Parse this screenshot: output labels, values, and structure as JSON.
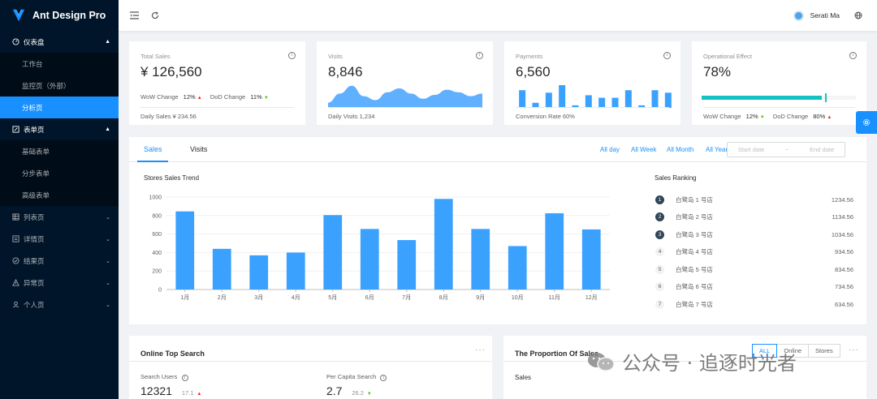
{
  "app": {
    "title": "Ant Design Pro"
  },
  "sidebar": {
    "groups": [
      {
        "label": "仪表盘",
        "icon": "dashboard-icon",
        "open": true,
        "items": [
          "工作台",
          "监控页（外部）",
          "分析页"
        ],
        "active": "分析页"
      },
      {
        "label": "表单页",
        "icon": "form-icon",
        "open": true,
        "items": [
          "基础表单",
          "分步表单",
          "高级表单"
        ]
      },
      {
        "label": "列表页",
        "icon": "table-icon"
      },
      {
        "label": "详情页",
        "icon": "profile-icon"
      },
      {
        "label": "结果页",
        "icon": "check-circle-icon"
      },
      {
        "label": "异常页",
        "icon": "warning-icon"
      },
      {
        "label": "个人页",
        "icon": "user-icon"
      }
    ]
  },
  "header": {
    "user_name": "Serati Ma"
  },
  "stats": {
    "total_sales": {
      "title": "Total Sales",
      "value": "¥ 126,560",
      "wow_label": "WoW Change",
      "wow_value": "12%",
      "dod_label": "DoD Change",
      "dod_value": "11%",
      "footer": "Daily Sales ¥ 234.56"
    },
    "visits": {
      "title": "Visits",
      "value": "8,846",
      "footer": "Daily Visits 1,234"
    },
    "payments": {
      "title": "Payments",
      "value": "6,560",
      "footer": "Conversion Rate 60%"
    },
    "operational": {
      "title": "Operational Effect",
      "value": "78%",
      "progress": 0.78,
      "wow_label": "WoW Change",
      "wow_value": "12%",
      "dod_label": "DoD Change",
      "dod_value": "80%"
    }
  },
  "sales_panel": {
    "tabs": [
      "Sales",
      "Visits"
    ],
    "active_tab": "Sales",
    "ranges": [
      "All day",
      "All Week",
      "All Month",
      "All Year"
    ],
    "start_placeholder": "Start date",
    "end_placeholder": "End date",
    "separator": "~",
    "chart_title": "Stores Sales Trend",
    "ranking_title": "Sales Ranking",
    "ranking": [
      {
        "rank": "1",
        "name": "白鹭岛 1 号店",
        "value": "1234.56"
      },
      {
        "rank": "2",
        "name": "白鹭岛 2 号店",
        "value": "1134.56"
      },
      {
        "rank": "3",
        "name": "白鹭岛 3 号店",
        "value": "1034.56"
      },
      {
        "rank": "4",
        "name": "白鹭岛 4 号店",
        "value": "934.56"
      },
      {
        "rank": "5",
        "name": "白鹭岛 5 号店",
        "value": "834.56"
      },
      {
        "rank": "6",
        "name": "白鹭岛 6 号店",
        "value": "734.56"
      },
      {
        "rank": "7",
        "name": "白鹭岛 7 号店",
        "value": "634.56"
      }
    ]
  },
  "chart_data": {
    "type": "bar",
    "categories": [
      "1月",
      "2月",
      "3月",
      "4月",
      "5月",
      "6月",
      "7月",
      "8月",
      "9月",
      "10月",
      "11月",
      "12月"
    ],
    "values": [
      845,
      440,
      370,
      400,
      805,
      655,
      535,
      980,
      655,
      470,
      825,
      650
    ],
    "ylim": [
      0,
      1000
    ],
    "yticks": [
      0,
      200,
      400,
      600,
      800,
      1000
    ],
    "grid": true,
    "color": "#3ba1ff"
  },
  "visits_spark": [
    0.2,
    0.55,
    0.85,
    0.45,
    0.3,
    0.6,
    0.75,
    0.55,
    0.35,
    0.5,
    0.7,
    0.6,
    0.45,
    0.55
  ],
  "payments_bars": [
    7,
    2,
    6,
    9,
    1,
    5,
    4,
    4,
    7,
    1,
    7,
    6
  ],
  "bottom": {
    "search_title": "Online Top Search",
    "search_users_label": "Search Users",
    "search_users_value": "12321",
    "search_users_change": "17.1",
    "per_capita_label": "Per Capita Search",
    "per_capita_value": "2.7",
    "per_capita_change": "26.2",
    "proportion_title": "The Proportion Of Sales",
    "proportion_buttons": [
      "ALL",
      "Online",
      "Stores"
    ],
    "proportion_active": "ALL",
    "sales_label": "Sales"
  },
  "watermark": {
    "text": "公众号 · 追逐时光者"
  },
  "colors": {
    "primary": "#1890ff",
    "sider": "#001529",
    "progress": "#13c2c2"
  }
}
